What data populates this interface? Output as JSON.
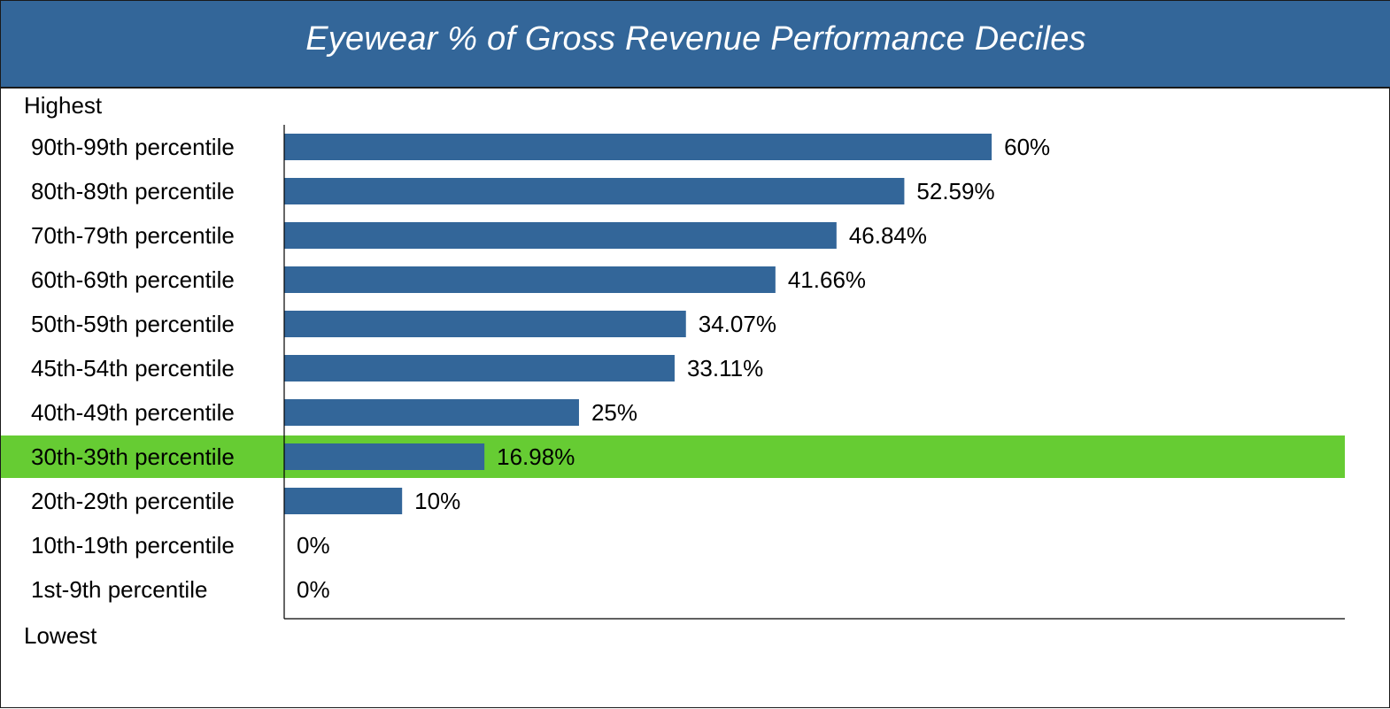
{
  "header": {
    "title": "Eyewear % of Gross Revenue Performance Deciles"
  },
  "scale": {
    "top": "Highest",
    "bottom": "Lowest"
  },
  "colors": {
    "header": "#336699",
    "bar": "#336699",
    "highlight": "#66cc33"
  },
  "chart_data": {
    "type": "bar",
    "orientation": "horizontal",
    "title": "Eyewear % of Gross Revenue Performance Deciles",
    "categories": [
      "90th-99th percentile",
      "80th-89th percentile",
      "70th-79th percentile",
      "60th-69th percentile",
      "50th-59th percentile",
      "45th-54th percentile",
      "40th-49th percentile",
      "30th-39th percentile",
      "20th-29th percentile",
      "10th-19th percentile",
      "1st-9th percentile"
    ],
    "values": [
      60,
      52.59,
      46.84,
      41.66,
      34.07,
      33.11,
      25,
      16.98,
      10,
      0,
      0
    ],
    "value_labels": [
      "60%",
      "52.59%",
      "46.84%",
      "41.66%",
      "34.07%",
      "33.11%",
      "25%",
      "16.98%",
      "10%",
      "0%",
      "0%"
    ],
    "highlighted_category": "30th-39th percentile",
    "xlim": [
      0,
      90
    ],
    "grid": false,
    "legend": "none"
  }
}
